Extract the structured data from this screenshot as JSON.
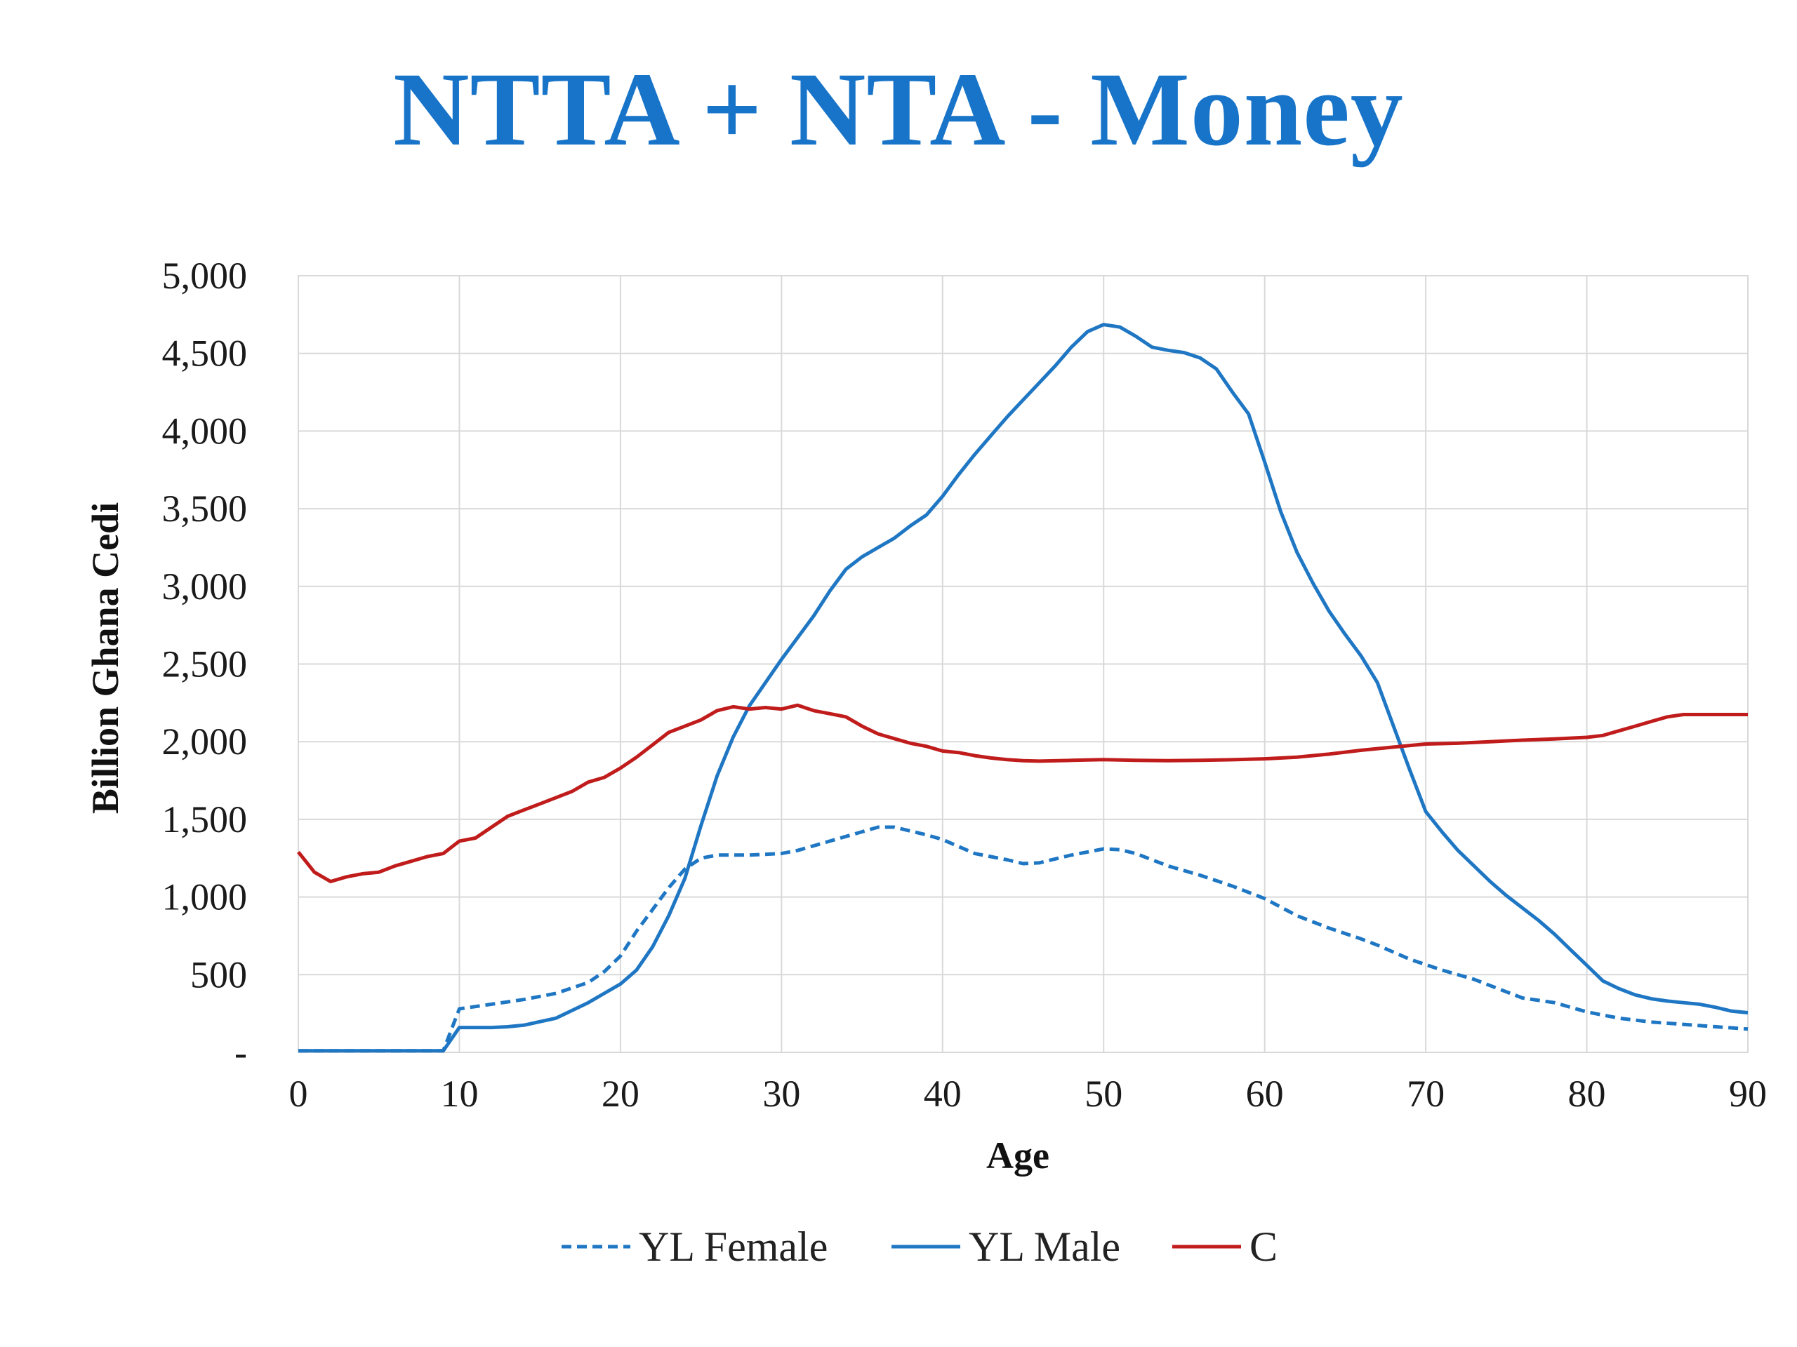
{
  "page": {
    "title": "NTTA + NTA - Money"
  },
  "chart_data": {
    "type": "line",
    "title": "NTTA + NTA - Money",
    "xlabel": "Age",
    "ylabel": "Billion Ghana Cedi",
    "xlim": [
      0,
      90
    ],
    "ylim": [
      0,
      5000
    ],
    "x_ticks": [
      0,
      10,
      20,
      30,
      40,
      50,
      60,
      70,
      80,
      90
    ],
    "x_tick_labels": [
      "0",
      "10",
      "20",
      "30",
      "40",
      "50",
      "60",
      "70",
      "80",
      "90"
    ],
    "y_ticks": [
      0,
      500,
      1000,
      1500,
      2000,
      2500,
      3000,
      3500,
      4000,
      4500,
      5000
    ],
    "y_tick_labels": [
      "-",
      "500",
      "1,000",
      "1,500",
      "2,000",
      "2,500",
      "3,000",
      "3,500",
      "4,000",
      "4,500",
      "5,000"
    ],
    "grid": true,
    "legend_position": "bottom",
    "series": [
      {
        "name": "YL Female",
        "color": "#1f77c4",
        "dash": "dashed",
        "points": [
          [
            0,
            10
          ],
          [
            9,
            10
          ],
          [
            10,
            280
          ],
          [
            12,
            310
          ],
          [
            14,
            340
          ],
          [
            16,
            380
          ],
          [
            18,
            450
          ],
          [
            19,
            520
          ],
          [
            20,
            620
          ],
          [
            21,
            780
          ],
          [
            22,
            920
          ],
          [
            23,
            1060
          ],
          [
            24,
            1180
          ],
          [
            25,
            1250
          ],
          [
            26,
            1270
          ],
          [
            28,
            1270
          ],
          [
            30,
            1280
          ],
          [
            31,
            1300
          ],
          [
            33,
            1360
          ],
          [
            35,
            1420
          ],
          [
            36,
            1450
          ],
          [
            37,
            1450
          ],
          [
            39,
            1400
          ],
          [
            40,
            1370
          ],
          [
            42,
            1280
          ],
          [
            44,
            1240
          ],
          [
            45,
            1215
          ],
          [
            46,
            1220
          ],
          [
            48,
            1270
          ],
          [
            50,
            1310
          ],
          [
            51,
            1305
          ],
          [
            52,
            1280
          ],
          [
            54,
            1200
          ],
          [
            56,
            1140
          ],
          [
            58,
            1070
          ],
          [
            60,
            990
          ],
          [
            62,
            880
          ],
          [
            64,
            800
          ],
          [
            66,
            730
          ],
          [
            67,
            690
          ],
          [
            69,
            600
          ],
          [
            71,
            530
          ],
          [
            73,
            470
          ],
          [
            75,
            390
          ],
          [
            76,
            350
          ],
          [
            78,
            320
          ],
          [
            80,
            260
          ],
          [
            82,
            220
          ],
          [
            84,
            195
          ],
          [
            86,
            180
          ],
          [
            88,
            165
          ],
          [
            90,
            150
          ]
        ]
      },
      {
        "name": "YL Male",
        "color": "#1f77c4",
        "dash": "solid",
        "points": [
          [
            0,
            10
          ],
          [
            9,
            10
          ],
          [
            10,
            160
          ],
          [
            12,
            160
          ],
          [
            13,
            165
          ],
          [
            14,
            175
          ],
          [
            16,
            220
          ],
          [
            18,
            320
          ],
          [
            19,
            380
          ],
          [
            20,
            440
          ],
          [
            21,
            530
          ],
          [
            22,
            680
          ],
          [
            23,
            880
          ],
          [
            24,
            1120
          ],
          [
            25,
            1460
          ],
          [
            26,
            1780
          ],
          [
            27,
            2030
          ],
          [
            28,
            2230
          ],
          [
            29,
            2380
          ],
          [
            30,
            2530
          ],
          [
            31,
            2670
          ],
          [
            32,
            2810
          ],
          [
            33,
            2970
          ],
          [
            34,
            3110
          ],
          [
            35,
            3190
          ],
          [
            36,
            3250
          ],
          [
            37,
            3310
          ],
          [
            38,
            3390
          ],
          [
            39,
            3460
          ],
          [
            40,
            3580
          ],
          [
            41,
            3720
          ],
          [
            42,
            3850
          ],
          [
            43,
            3970
          ],
          [
            44,
            4090
          ],
          [
            45,
            4200
          ],
          [
            46,
            4310
          ],
          [
            47,
            4420
          ],
          [
            48,
            4540
          ],
          [
            49,
            4640
          ],
          [
            50,
            4685
          ],
          [
            51,
            4670
          ],
          [
            52,
            4610
          ],
          [
            53,
            4540
          ],
          [
            54,
            4520
          ],
          [
            55,
            4505
          ],
          [
            56,
            4470
          ],
          [
            57,
            4400
          ],
          [
            58,
            4250
          ],
          [
            59,
            4110
          ],
          [
            60,
            3800
          ],
          [
            61,
            3480
          ],
          [
            62,
            3220
          ],
          [
            63,
            3020
          ],
          [
            64,
            2840
          ],
          [
            65,
            2690
          ],
          [
            66,
            2550
          ],
          [
            67,
            2380
          ],
          [
            68,
            2100
          ],
          [
            69,
            1820
          ],
          [
            70,
            1550
          ],
          [
            71,
            1420
          ],
          [
            72,
            1300
          ],
          [
            73,
            1200
          ],
          [
            74,
            1100
          ],
          [
            75,
            1010
          ],
          [
            76,
            930
          ],
          [
            77,
            850
          ],
          [
            78,
            760
          ],
          [
            79,
            660
          ],
          [
            80,
            560
          ],
          [
            81,
            460
          ],
          [
            82,
            410
          ],
          [
            83,
            370
          ],
          [
            84,
            345
          ],
          [
            85,
            330
          ],
          [
            86,
            320
          ],
          [
            87,
            310
          ],
          [
            88,
            290
          ],
          [
            89,
            265
          ],
          [
            90,
            255
          ]
        ]
      },
      {
        "name": "C",
        "color": "#c01c1c",
        "dash": "solid",
        "points": [
          [
            0,
            1290
          ],
          [
            1,
            1160
          ],
          [
            2,
            1100
          ],
          [
            3,
            1130
          ],
          [
            4,
            1150
          ],
          [
            5,
            1160
          ],
          [
            6,
            1200
          ],
          [
            7,
            1230
          ],
          [
            8,
            1260
          ],
          [
            9,
            1280
          ],
          [
            10,
            1360
          ],
          [
            11,
            1380
          ],
          [
            12,
            1450
          ],
          [
            13,
            1520
          ],
          [
            14,
            1560
          ],
          [
            15,
            1600
          ],
          [
            16,
            1640
          ],
          [
            17,
            1680
          ],
          [
            18,
            1740
          ],
          [
            19,
            1770
          ],
          [
            20,
            1830
          ],
          [
            21,
            1900
          ],
          [
            22,
            1980
          ],
          [
            23,
            2060
          ],
          [
            24,
            2100
          ],
          [
            25,
            2140
          ],
          [
            26,
            2200
          ],
          [
            27,
            2225
          ],
          [
            28,
            2210
          ],
          [
            29,
            2220
          ],
          [
            30,
            2210
          ],
          [
            31,
            2235
          ],
          [
            32,
            2200
          ],
          [
            33,
            2180
          ],
          [
            34,
            2160
          ],
          [
            35,
            2100
          ],
          [
            36,
            2050
          ],
          [
            37,
            2020
          ],
          [
            38,
            1990
          ],
          [
            39,
            1970
          ],
          [
            40,
            1940
          ],
          [
            41,
            1930
          ],
          [
            42,
            1910
          ],
          [
            43,
            1895
          ],
          [
            44,
            1885
          ],
          [
            45,
            1878
          ],
          [
            46,
            1875
          ],
          [
            48,
            1880
          ],
          [
            50,
            1885
          ],
          [
            52,
            1880
          ],
          [
            54,
            1878
          ],
          [
            56,
            1880
          ],
          [
            58,
            1884
          ],
          [
            60,
            1890
          ],
          [
            62,
            1900
          ],
          [
            64,
            1920
          ],
          [
            66,
            1945
          ],
          [
            68,
            1965
          ],
          [
            70,
            1985
          ],
          [
            72,
            1990
          ],
          [
            74,
            2000
          ],
          [
            76,
            2010
          ],
          [
            78,
            2018
          ],
          [
            80,
            2028
          ],
          [
            81,
            2040
          ],
          [
            82,
            2070
          ],
          [
            83,
            2100
          ],
          [
            84,
            2130
          ],
          [
            85,
            2160
          ],
          [
            86,
            2175
          ],
          [
            88,
            2175
          ],
          [
            90,
            2175
          ]
        ]
      }
    ]
  }
}
